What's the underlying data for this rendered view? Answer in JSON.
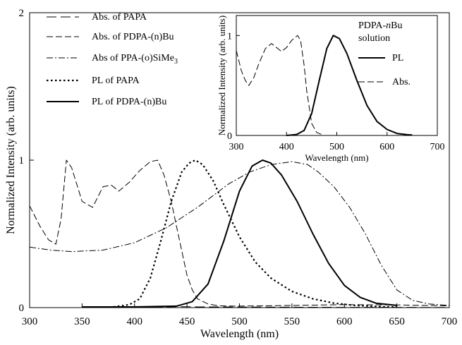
{
  "chart_data": [
    {
      "id": "main",
      "type": "line",
      "xlabel": "Wavelength (nm)",
      "ylabel": "Normalized Intensity (arb. units)",
      "xlim": [
        300,
        700
      ],
      "ylim": [
        0,
        2
      ],
      "xticks": [
        300,
        350,
        400,
        450,
        500,
        550,
        600,
        650,
        700
      ],
      "yticks": [
        0,
        1,
        2
      ],
      "legend_position": "top-left",
      "series": [
        {
          "name": "Abs. of PAPA",
          "style": "long-dash",
          "x": [
            350,
            365,
            380,
            395,
            410,
            420,
            430,
            440,
            450,
            460,
            480,
            500,
            550,
            600,
            650,
            700
          ],
          "y": [
            0,
            0,
            0.002,
            0.003,
            0.004,
            0.005,
            0.005,
            0.006,
            0.006,
            0.005,
            0.005,
            0.004,
            0.003,
            0.002,
            0.002,
            0.001
          ]
        },
        {
          "name": "Abs. of PDPA-(n)Bu",
          "style": "dash",
          "x": [
            300,
            310,
            318,
            325,
            330,
            335,
            340,
            350,
            360,
            370,
            378,
            385,
            395,
            405,
            415,
            422,
            428,
            435,
            440,
            450,
            455,
            460,
            470,
            480,
            500,
            550,
            600,
            650,
            700
          ],
          "y": [
            0.69,
            0.55,
            0.46,
            0.43,
            0.6,
            1.0,
            0.95,
            0.72,
            0.68,
            0.82,
            0.83,
            0.79,
            0.85,
            0.93,
            0.99,
            1.0,
            0.9,
            0.72,
            0.55,
            0.22,
            0.12,
            0.06,
            0.025,
            0.012,
            0.01,
            0.015,
            0.02,
            0.018,
            0.012
          ]
        },
        {
          "name": "Abs of PPA-(o)SiMe3",
          "style": "dash-dot",
          "x": [
            300,
            320,
            340,
            370,
            400,
            430,
            460,
            490,
            510,
            530,
            550,
            565,
            575,
            590,
            605,
            620,
            635,
            650,
            665,
            680,
            700
          ],
          "y": [
            0.41,
            0.39,
            0.38,
            0.39,
            0.44,
            0.54,
            0.68,
            0.84,
            0.92,
            0.97,
            0.99,
            0.97,
            0.92,
            0.82,
            0.68,
            0.5,
            0.29,
            0.12,
            0.05,
            0.025,
            0.015
          ]
        },
        {
          "name": "PL of PAPA",
          "style": "dot",
          "x": [
            380,
            395,
            405,
            415,
            425,
            435,
            445,
            452,
            458,
            465,
            475,
            485,
            500,
            515,
            530,
            550,
            570,
            590,
            610,
            630,
            650
          ],
          "y": [
            0.005,
            0.02,
            0.06,
            0.2,
            0.45,
            0.72,
            0.92,
            0.98,
            1.0,
            0.97,
            0.86,
            0.7,
            0.48,
            0.31,
            0.2,
            0.11,
            0.06,
            0.03,
            0.015,
            0.008,
            0.004
          ]
        },
        {
          "name": "PL of PDPA-(n)Bu",
          "style": "solid",
          "x": [
            350,
            400,
            440,
            455,
            470,
            485,
            500,
            512,
            522,
            530,
            540,
            555,
            570,
            585,
            600,
            615,
            630,
            650
          ],
          "y": [
            0.005,
            0.005,
            0.01,
            0.04,
            0.16,
            0.45,
            0.79,
            0.96,
            1.0,
            0.98,
            0.9,
            0.72,
            0.5,
            0.3,
            0.15,
            0.07,
            0.03,
            0.015
          ]
        }
      ]
    },
    {
      "id": "inset",
      "type": "line",
      "title_line1": "PDPA-",
      "title_n": "n",
      "title_rest": "Bu",
      "title_line2": "solution",
      "xlabel": "Wavelength (nm)",
      "ylabel": "Normalized Intensity (arb. units)",
      "xlim": [
        300,
        700
      ],
      "ylim": [
        0,
        1.2
      ],
      "xticks": [
        300,
        400,
        500,
        600,
        700
      ],
      "yticks": [
        0,
        1
      ],
      "legend_position": "right",
      "series": [
        {
          "name": "PL",
          "style": "solid",
          "x": [
            400,
            420,
            435,
            450,
            465,
            480,
            493,
            505,
            520,
            540,
            560,
            580,
            600,
            620,
            640,
            650
          ],
          "y": [
            0.0,
            0.01,
            0.05,
            0.22,
            0.55,
            0.87,
            1.0,
            0.97,
            0.82,
            0.55,
            0.3,
            0.14,
            0.06,
            0.02,
            0.008,
            0.004
          ]
        },
        {
          "name": "Abs.",
          "style": "dash",
          "x": [
            300,
            310,
            318,
            325,
            335,
            345,
            358,
            370,
            380,
            390,
            400,
            410,
            422,
            428,
            435,
            440,
            450,
            460,
            470
          ],
          "y": [
            0.85,
            0.65,
            0.55,
            0.5,
            0.58,
            0.72,
            0.87,
            0.92,
            0.88,
            0.84,
            0.88,
            0.95,
            1.0,
            0.95,
            0.7,
            0.45,
            0.12,
            0.03,
            0.01
          ]
        }
      ]
    }
  ]
}
